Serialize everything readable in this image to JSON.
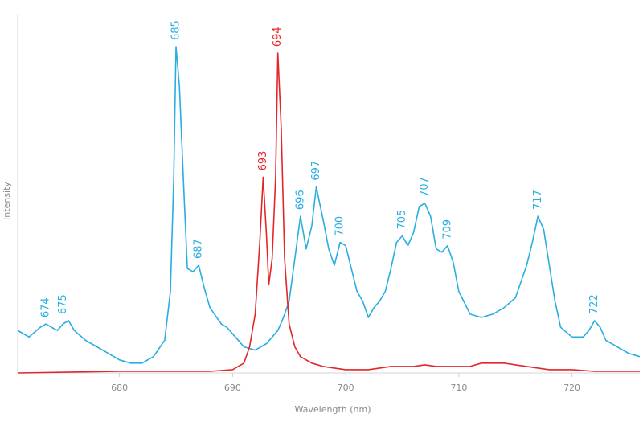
{
  "chart_data": {
    "type": "line",
    "title": "",
    "xlabel": "Wavelength (nm)",
    "ylabel": "Intensity",
    "xlim": [
      671,
      726
    ],
    "ylim": [
      0,
      100
    ],
    "x_ticks": [
      680,
      690,
      700,
      710,
      720
    ],
    "grid": false,
    "legend": "none",
    "series": [
      {
        "color": "#29aee0",
        "points": [
          [
            671.0,
            13
          ],
          [
            672.0,
            11
          ],
          [
            673.0,
            14
          ],
          [
            673.5,
            15
          ],
          [
            674.0,
            14
          ],
          [
            674.5,
            13
          ],
          [
            675.0,
            15
          ],
          [
            675.5,
            16
          ],
          [
            676.0,
            13
          ],
          [
            677.0,
            10
          ],
          [
            678.0,
            8
          ],
          [
            679.0,
            6
          ],
          [
            680.0,
            4
          ],
          [
            681.0,
            3
          ],
          [
            682.0,
            3
          ],
          [
            683.0,
            5
          ],
          [
            684.0,
            10
          ],
          [
            684.5,
            25
          ],
          [
            684.8,
            60
          ],
          [
            685.0,
            100
          ],
          [
            685.3,
            88
          ],
          [
            685.7,
            55
          ],
          [
            686.0,
            32
          ],
          [
            686.5,
            31
          ],
          [
            687.0,
            33
          ],
          [
            687.5,
            26
          ],
          [
            688.0,
            20
          ],
          [
            689.0,
            15
          ],
          [
            689.5,
            14
          ],
          [
            690.0,
            12
          ],
          [
            691.0,
            8
          ],
          [
            692.0,
            7
          ],
          [
            693.0,
            9
          ],
          [
            694.0,
            13
          ],
          [
            694.5,
            17
          ],
          [
            695.0,
            22
          ],
          [
            695.5,
            35
          ],
          [
            696.0,
            48
          ],
          [
            696.5,
            38
          ],
          [
            697.0,
            45
          ],
          [
            697.4,
            57
          ],
          [
            698.0,
            47
          ],
          [
            698.5,
            38
          ],
          [
            699.0,
            33
          ],
          [
            699.5,
            40
          ],
          [
            700.0,
            39
          ],
          [
            700.5,
            32
          ],
          [
            701.0,
            25
          ],
          [
            701.5,
            22
          ],
          [
            702.0,
            17
          ],
          [
            702.5,
            20
          ],
          [
            703.0,
            22
          ],
          [
            703.5,
            25
          ],
          [
            704.0,
            32
          ],
          [
            704.5,
            40
          ],
          [
            705.0,
            42
          ],
          [
            705.5,
            39
          ],
          [
            706.0,
            43
          ],
          [
            706.5,
            51
          ],
          [
            707.0,
            52
          ],
          [
            707.5,
            48
          ],
          [
            708.0,
            38
          ],
          [
            708.5,
            37
          ],
          [
            709.0,
            39
          ],
          [
            709.5,
            34
          ],
          [
            710.0,
            25
          ],
          [
            711.0,
            18
          ],
          [
            712.0,
            17
          ],
          [
            713.0,
            18
          ],
          [
            714.0,
            20
          ],
          [
            715.0,
            23
          ],
          [
            716.0,
            33
          ],
          [
            716.5,
            40
          ],
          [
            717.0,
            48
          ],
          [
            717.5,
            44
          ],
          [
            718.0,
            33
          ],
          [
            718.5,
            22
          ],
          [
            719.0,
            14
          ],
          [
            720.0,
            11
          ],
          [
            721.0,
            11
          ],
          [
            721.5,
            13
          ],
          [
            722.0,
            16
          ],
          [
            722.5,
            14
          ],
          [
            723.0,
            10
          ],
          [
            724.0,
            8
          ],
          [
            725.0,
            6
          ],
          [
            726.0,
            5
          ]
        ]
      },
      {
        "color": "#e3262a",
        "points": [
          [
            671.0,
            0
          ],
          [
            680.0,
            0.5
          ],
          [
            688.0,
            0.5
          ],
          [
            690.0,
            1
          ],
          [
            691.0,
            3
          ],
          [
            691.5,
            8
          ],
          [
            692.0,
            18
          ],
          [
            692.4,
            40
          ],
          [
            692.7,
            60
          ],
          [
            693.0,
            42
          ],
          [
            693.2,
            27
          ],
          [
            693.5,
            35
          ],
          [
            693.8,
            60
          ],
          [
            694.0,
            98
          ],
          [
            694.3,
            75
          ],
          [
            694.6,
            35
          ],
          [
            695.0,
            15
          ],
          [
            695.5,
            8
          ],
          [
            696.0,
            5
          ],
          [
            697.0,
            3
          ],
          [
            698.0,
            2
          ],
          [
            699.0,
            1.5
          ],
          [
            700.0,
            1
          ],
          [
            701.0,
            1
          ],
          [
            702.0,
            1
          ],
          [
            703.0,
            1.5
          ],
          [
            704.0,
            2
          ],
          [
            705.0,
            2
          ],
          [
            706.0,
            2
          ],
          [
            707.0,
            2.5
          ],
          [
            708.0,
            2
          ],
          [
            709.0,
            2
          ],
          [
            710.0,
            2
          ],
          [
            711.0,
            2
          ],
          [
            712.0,
            3
          ],
          [
            713.0,
            3
          ],
          [
            714.0,
            3
          ],
          [
            715.0,
            2.5
          ],
          [
            716.0,
            2
          ],
          [
            717.0,
            1.5
          ],
          [
            718.0,
            1
          ],
          [
            720.0,
            1
          ],
          [
            722.0,
            0.5
          ],
          [
            726.0,
            0.5
          ]
        ]
      }
    ],
    "annotations": [
      {
        "text": "674",
        "x": 673.5,
        "y": 15,
        "color": "#29aee0"
      },
      {
        "text": "675",
        "x": 675.0,
        "y": 16,
        "color": "#29aee0"
      },
      {
        "text": "685",
        "x": 685.0,
        "y": 100,
        "color": "#29aee0"
      },
      {
        "text": "687",
        "x": 687.0,
        "y": 33,
        "color": "#29aee0"
      },
      {
        "text": "693",
        "x": 692.7,
        "y": 60,
        "color": "#e3262a"
      },
      {
        "text": "694",
        "x": 694.0,
        "y": 98,
        "color": "#e3262a"
      },
      {
        "text": "696",
        "x": 696.0,
        "y": 48,
        "color": "#29aee0"
      },
      {
        "text": "697",
        "x": 697.4,
        "y": 57,
        "color": "#29aee0"
      },
      {
        "text": "700",
        "x": 699.5,
        "y": 40,
        "color": "#29aee0"
      },
      {
        "text": "705",
        "x": 705.0,
        "y": 42,
        "color": "#29aee0"
      },
      {
        "text": "707",
        "x": 707.0,
        "y": 52,
        "color": "#29aee0"
      },
      {
        "text": "709",
        "x": 709.0,
        "y": 39,
        "color": "#29aee0"
      },
      {
        "text": "717",
        "x": 717.0,
        "y": 48,
        "color": "#29aee0"
      },
      {
        "text": "722",
        "x": 722.0,
        "y": 16,
        "color": "#29aee0"
      }
    ]
  }
}
